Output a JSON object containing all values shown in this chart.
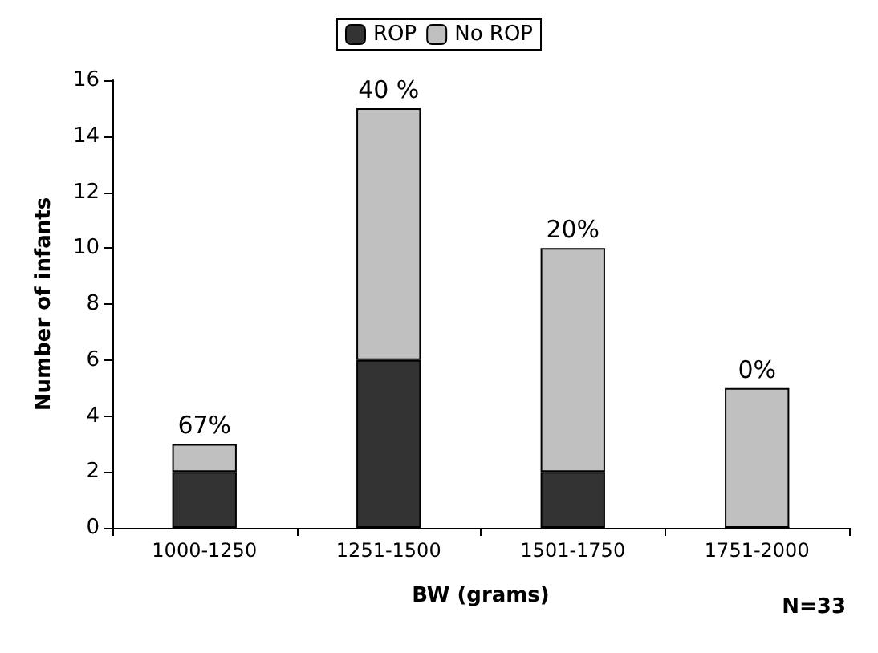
{
  "chart_data": {
    "type": "bar",
    "stacked": true,
    "xlabel": "BW (grams)",
    "ylabel": "Number of infants",
    "categories": [
      "1000-1250",
      "1251-1500",
      "1501-1750",
      "1751-2000"
    ],
    "series": [
      {
        "name": "ROP",
        "color": "#333333",
        "values": [
          2,
          6,
          2,
          0
        ]
      },
      {
        "name": "No ROP",
        "color": "#c0c0c0",
        "values": [
          1,
          9,
          8,
          5
        ]
      }
    ],
    "ylim": [
      0,
      16
    ],
    "yticks": [
      0,
      2,
      4,
      6,
      8,
      10,
      12,
      14,
      16
    ],
    "grid": false,
    "legend": "top",
    "annotations": [
      {
        "text": "67%",
        "x": "1000-1250",
        "y": 3
      },
      {
        "text": "40 %",
        "x": "1251-1500",
        "y": 15
      },
      {
        "text": "20%",
        "x": "1501-1750",
        "y": 10
      },
      {
        "text": "0%",
        "x": "1751-2000",
        "y": 5
      },
      "N=33"
    ]
  }
}
